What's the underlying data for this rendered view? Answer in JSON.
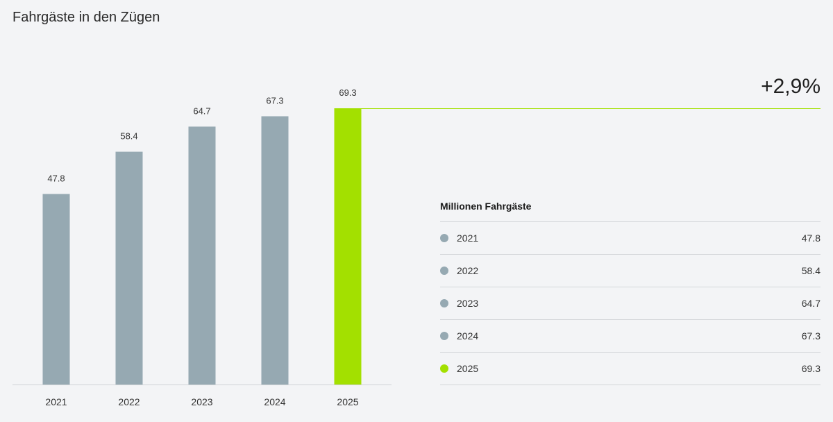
{
  "title": "Fahrgäste in den Zügen",
  "change_label": "+2,9%",
  "colors": {
    "bar": "#96a9b2",
    "highlight": "#a3e000",
    "axis": "#cfd3d6"
  },
  "chart_data": {
    "type": "bar",
    "title": "Fahrgäste in den Zügen",
    "categories": [
      "2021",
      "2022",
      "2023",
      "2024",
      "2025"
    ],
    "values": [
      47.8,
      58.4,
      64.7,
      67.3,
      69.3
    ],
    "value_labels": [
      "47.8",
      "58.4",
      "64.7",
      "67.3",
      "69.3"
    ],
    "ylim": [
      0,
      69.3
    ],
    "highlight_index": 4,
    "grid": false,
    "legend_position": "right"
  },
  "legend": {
    "title": "Millionen Fahrgäste",
    "items": [
      {
        "label": "2021",
        "value": "47.8",
        "color": "#96a9b2"
      },
      {
        "label": "2022",
        "value": "58.4",
        "color": "#96a9b2"
      },
      {
        "label": "2023",
        "value": "64.7",
        "color": "#96a9b2"
      },
      {
        "label": "2024",
        "value": "67.3",
        "color": "#96a9b2"
      },
      {
        "label": "2025",
        "value": "69.3",
        "color": "#a3e000"
      }
    ]
  }
}
